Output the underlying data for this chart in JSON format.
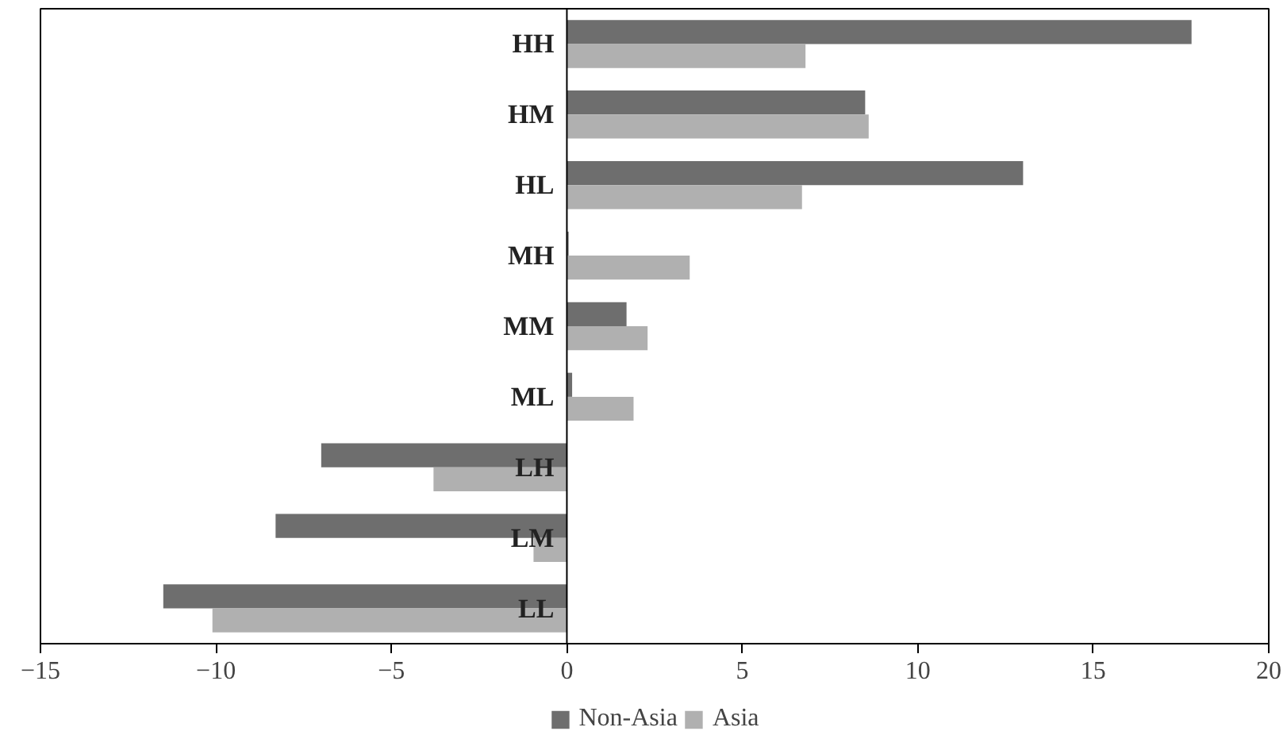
{
  "chart_data": {
    "type": "bar",
    "orientation": "horizontal",
    "categories": [
      "HH",
      "HM",
      "HL",
      "MH",
      "MM",
      "ML",
      "LH",
      "LM",
      "LL"
    ],
    "series": [
      {
        "name": "Non-Asia",
        "color": "#6e6e6e",
        "values": [
          17.8,
          8.5,
          13.0,
          0.05,
          1.7,
          0.15,
          -7.0,
          -8.3,
          -11.5
        ]
      },
      {
        "name": "Asia",
        "color": "#b0b0b0",
        "values": [
          6.8,
          8.6,
          6.7,
          3.5,
          2.3,
          1.9,
          -3.8,
          -0.95,
          -10.1
        ]
      }
    ],
    "xlim": [
      -15,
      20
    ],
    "xticks": [
      -15,
      -10,
      -5,
      0,
      5,
      10,
      15,
      20
    ],
    "grid": false,
    "legend": "bottom"
  }
}
